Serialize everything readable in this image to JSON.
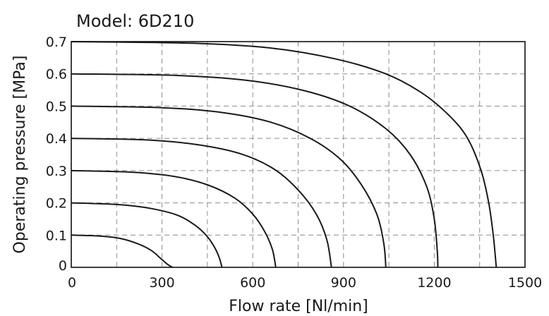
{
  "chart_data": {
    "type": "line",
    "title": "Model: 6D210",
    "xlabel": "Flow rate [Nl/min]",
    "ylabel": "Operating pressure [MPa]",
    "xlim": [
      0,
      1500
    ],
    "ylim": [
      0,
      0.7
    ],
    "x_ticks": [
      "0",
      "300",
      "600",
      "900",
      "1200",
      "1500"
    ],
    "y_ticks": [
      "0",
      "0.1",
      "0.2",
      "0.3",
      "0.4",
      "0.5",
      "0.6",
      "0.7"
    ],
    "grid": true,
    "series": [
      {
        "points": [
          [
            0,
            0.1
          ],
          [
            95,
            0.097
          ],
          [
            160,
            0.09
          ],
          [
            220,
            0.073
          ],
          [
            265,
            0.052
          ],
          [
            295,
            0.028
          ],
          [
            320,
            0.008
          ],
          [
            335,
            0
          ]
        ]
      },
      {
        "points": [
          [
            0,
            0.2
          ],
          [
            150,
            0.195
          ],
          [
            260,
            0.183
          ],
          [
            350,
            0.162
          ],
          [
            410,
            0.13
          ],
          [
            450,
            0.095
          ],
          [
            475,
            0.06
          ],
          [
            490,
            0.028
          ],
          [
            498,
            0
          ]
        ]
      },
      {
        "points": [
          [
            0,
            0.3
          ],
          [
            200,
            0.295
          ],
          [
            340,
            0.282
          ],
          [
            450,
            0.256
          ],
          [
            540,
            0.215
          ],
          [
            600,
            0.165
          ],
          [
            640,
            0.11
          ],
          [
            665,
            0.055
          ],
          [
            676,
            0
          ]
        ]
      },
      {
        "points": [
          [
            0,
            0.4
          ],
          [
            250,
            0.395
          ],
          [
            420,
            0.38
          ],
          [
            560,
            0.352
          ],
          [
            670,
            0.305
          ],
          [
            750,
            0.24
          ],
          [
            810,
            0.165
          ],
          [
            845,
            0.085
          ],
          [
            860,
            0
          ]
        ]
      },
      {
        "points": [
          [
            0,
            0.5
          ],
          [
            300,
            0.495
          ],
          [
            500,
            0.48
          ],
          [
            660,
            0.45
          ],
          [
            790,
            0.4
          ],
          [
            890,
            0.335
          ],
          [
            960,
            0.255
          ],
          [
            1010,
            0.165
          ],
          [
            1033,
            0.075
          ],
          [
            1040,
            0
          ]
        ]
      },
      {
        "points": [
          [
            0,
            0.6
          ],
          [
            350,
            0.595
          ],
          [
            580,
            0.58
          ],
          [
            770,
            0.548
          ],
          [
            920,
            0.5
          ],
          [
            1040,
            0.43
          ],
          [
            1120,
            0.35
          ],
          [
            1175,
            0.25
          ],
          [
            1200,
            0.15
          ],
          [
            1210,
            0.05
          ],
          [
            1212,
            0
          ]
        ]
      },
      {
        "points": [
          [
            0,
            0.7
          ],
          [
            400,
            0.695
          ],
          [
            660,
            0.68
          ],
          [
            870,
            0.647
          ],
          [
            1040,
            0.6
          ],
          [
            1160,
            0.54
          ],
          [
            1250,
            0.47
          ],
          [
            1310,
            0.4
          ],
          [
            1355,
            0.3
          ],
          [
            1380,
            0.2
          ],
          [
            1395,
            0.1
          ],
          [
            1405,
            0
          ]
        ]
      }
    ]
  }
}
